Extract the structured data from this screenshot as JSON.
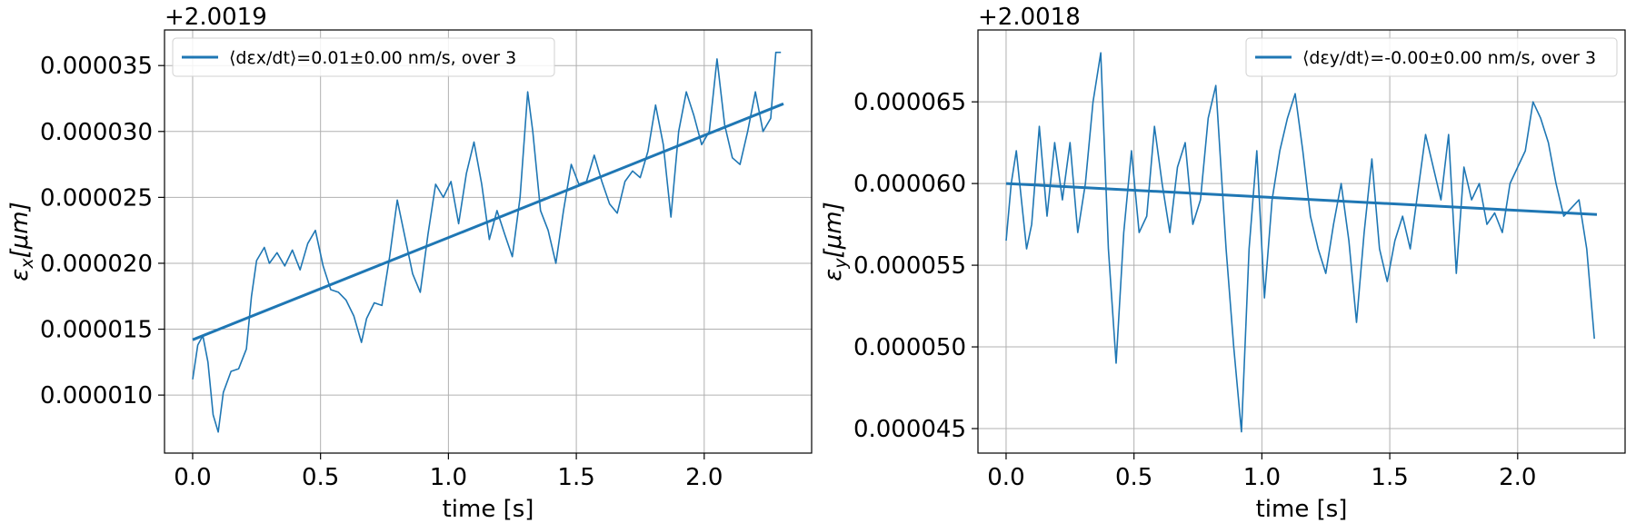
{
  "chart_data": [
    {
      "type": "line",
      "xlabel": "time [s]",
      "ylabel": "εx[μm]",
      "ylabel_main": "ε",
      "ylabel_sub": "x",
      "ylabel_unit": "[μm]",
      "offset_text": "+2.0019",
      "xlim": [
        -0.11,
        2.42
      ],
      "ylim": [
        5.6e-06,
        3.77e-05
      ],
      "x_ticks": [
        0.0,
        0.5,
        1.0,
        1.5,
        2.0
      ],
      "x_tick_labels": [
        "0.0",
        "0.5",
        "1.0",
        "1.5",
        "2.0"
      ],
      "y_ticks": [
        1e-05,
        1.5e-05,
        2e-05,
        2.5e-05,
        3e-05,
        3.5e-05
      ],
      "y_tick_labels": [
        "0.000010",
        "0.000015",
        "0.000020",
        "0.000025",
        "0.000030",
        "0.000035"
      ],
      "grid": true,
      "legend_position": "top-left",
      "color": "#1f77b4",
      "series": [
        {
          "name": "⟨dεx/dt⟩=0.01±0.00 nm/s, over 3",
          "kind": "signal",
          "x": [
            0.0,
            0.02,
            0.04,
            0.06,
            0.08,
            0.1,
            0.12,
            0.15,
            0.18,
            0.21,
            0.23,
            0.25,
            0.28,
            0.3,
            0.33,
            0.36,
            0.39,
            0.42,
            0.45,
            0.48,
            0.51,
            0.54,
            0.57,
            0.6,
            0.63,
            0.66,
            0.68,
            0.71,
            0.74,
            0.77,
            0.8,
            0.83,
            0.86,
            0.89,
            0.92,
            0.95,
            0.98,
            1.01,
            1.04,
            1.07,
            1.1,
            1.13,
            1.16,
            1.19,
            1.22,
            1.25,
            1.28,
            1.31,
            1.33,
            1.36,
            1.39,
            1.42,
            1.45,
            1.48,
            1.51,
            1.54,
            1.57,
            1.6,
            1.63,
            1.66,
            1.69,
            1.72,
            1.75,
            1.78,
            1.81,
            1.84,
            1.87,
            1.9,
            1.93,
            1.96,
            1.99,
            2.02,
            2.05,
            2.08,
            2.11,
            2.14,
            2.17,
            2.2,
            2.23,
            2.26,
            2.28,
            2.3
          ],
          "y": [
            1.12e-05,
            1.38e-05,
            1.45e-05,
            1.25e-05,
            8.5e-06,
            7.2e-06,
            1.02e-05,
            1.18e-05,
            1.2e-05,
            1.35e-05,
            1.75e-05,
            2.02e-05,
            2.12e-05,
            2e-05,
            2.08e-05,
            1.98e-05,
            2.1e-05,
            1.95e-05,
            2.15e-05,
            2.25e-05,
            1.98e-05,
            1.8e-05,
            1.78e-05,
            1.72e-05,
            1.6e-05,
            1.4e-05,
            1.58e-05,
            1.7e-05,
            1.68e-05,
            2.05e-05,
            2.48e-05,
            2.2e-05,
            1.92e-05,
            1.78e-05,
            2.22e-05,
            2.6e-05,
            2.5e-05,
            2.62e-05,
            2.3e-05,
            2.68e-05,
            2.92e-05,
            2.6e-05,
            2.18e-05,
            2.4e-05,
            2.22e-05,
            2.05e-05,
            2.5e-05,
            3.3e-05,
            3e-05,
            2.4e-05,
            2.25e-05,
            2e-05,
            2.4e-05,
            2.75e-05,
            2.6e-05,
            2.62e-05,
            2.82e-05,
            2.62e-05,
            2.45e-05,
            2.38e-05,
            2.62e-05,
            2.7e-05,
            2.65e-05,
            2.85e-05,
            3.2e-05,
            2.9e-05,
            2.35e-05,
            3e-05,
            3.3e-05,
            3.12e-05,
            2.9e-05,
            3e-05,
            3.55e-05,
            3.05e-05,
            2.8e-05,
            2.75e-05,
            3e-05,
            3.3e-05,
            3e-05,
            3.1e-05,
            3.6e-05,
            3.6e-05
          ]
        },
        {
          "kind": "fit",
          "x": [
            0.0,
            2.31
          ],
          "y": [
            1.42e-05,
            3.21e-05
          ]
        }
      ]
    },
    {
      "type": "line",
      "xlabel": "time [s]",
      "ylabel": "εy[μm]",
      "ylabel_main": "ε",
      "ylabel_sub": "y",
      "ylabel_unit": "[μm]",
      "offset_text": "+2.0018",
      "xlim": [
        -0.11,
        2.42
      ],
      "ylim": [
        4.35e-05,
        6.94e-05
      ],
      "x_ticks": [
        0.0,
        0.5,
        1.0,
        1.5,
        2.0
      ],
      "x_tick_labels": [
        "0.0",
        "0.5",
        "1.0",
        "1.5",
        "2.0"
      ],
      "y_ticks": [
        4.5e-05,
        5e-05,
        5.5e-05,
        6e-05,
        6.5e-05
      ],
      "y_tick_labels": [
        "0.000045",
        "0.000050",
        "0.000055",
        "0.000060",
        "0.000065"
      ],
      "grid": true,
      "legend_position": "top-right",
      "color": "#1f77b4",
      "series": [
        {
          "name": "⟨dεy/dt⟩=-0.00±0.00 nm/s, over 3",
          "kind": "signal",
          "x": [
            0.0,
            0.02,
            0.04,
            0.06,
            0.08,
            0.1,
            0.13,
            0.16,
            0.19,
            0.22,
            0.25,
            0.28,
            0.31,
            0.34,
            0.37,
            0.4,
            0.43,
            0.46,
            0.49,
            0.52,
            0.55,
            0.58,
            0.61,
            0.64,
            0.67,
            0.7,
            0.73,
            0.76,
            0.79,
            0.82,
            0.86,
            0.89,
            0.92,
            0.95,
            0.98,
            1.01,
            1.04,
            1.07,
            1.1,
            1.13,
            1.16,
            1.19,
            1.22,
            1.25,
            1.28,
            1.31,
            1.34,
            1.37,
            1.4,
            1.43,
            1.46,
            1.49,
            1.52,
            1.55,
            1.58,
            1.61,
            1.64,
            1.67,
            1.7,
            1.73,
            1.76,
            1.79,
            1.82,
            1.85,
            1.88,
            1.91,
            1.94,
            1.97,
            2.0,
            2.03,
            2.06,
            2.09,
            2.12,
            2.15,
            2.18,
            2.21,
            2.24,
            2.27,
            2.3
          ],
          "y": [
            5.65e-05,
            6e-05,
            6.2e-05,
            5.9e-05,
            5.6e-05,
            5.75e-05,
            6.35e-05,
            5.8e-05,
            6.25e-05,
            5.9e-05,
            6.25e-05,
            5.7e-05,
            6e-05,
            6.5e-05,
            6.8e-05,
            5.6e-05,
            4.9e-05,
            5.7e-05,
            6.2e-05,
            5.7e-05,
            5.8e-05,
            6.35e-05,
            6e-05,
            5.7e-05,
            6.1e-05,
            6.25e-05,
            5.75e-05,
            5.9e-05,
            6.4e-05,
            6.6e-05,
            5.6e-05,
            5e-05,
            4.48e-05,
            5.6e-05,
            6.2e-05,
            5.3e-05,
            5.9e-05,
            6.2e-05,
            6.4e-05,
            6.55e-05,
            6.2e-05,
            5.8e-05,
            5.6e-05,
            5.45e-05,
            5.75e-05,
            6e-05,
            5.65e-05,
            5.15e-05,
            5.7e-05,
            6.15e-05,
            5.6e-05,
            5.4e-05,
            5.65e-05,
            5.8e-05,
            5.6e-05,
            5.95e-05,
            6.3e-05,
            6.1e-05,
            5.9e-05,
            6.3e-05,
            5.45e-05,
            6.1e-05,
            5.9e-05,
            6e-05,
            5.75e-05,
            5.82e-05,
            5.7e-05,
            6e-05,
            6.1e-05,
            6.2e-05,
            6.5e-05,
            6.4e-05,
            6.25e-05,
            6e-05,
            5.8e-05,
            5.85e-05,
            5.9e-05,
            5.6e-05,
            5.05e-05
          ]
        },
        {
          "kind": "fit",
          "x": [
            0.0,
            2.31
          ],
          "y": [
            6e-05,
            5.81e-05
          ]
        }
      ]
    }
  ]
}
